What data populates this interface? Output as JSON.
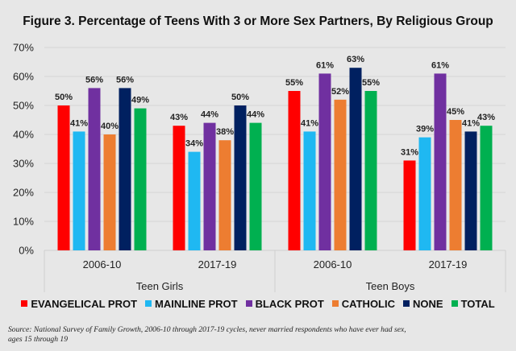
{
  "chart_data": {
    "type": "bar",
    "title": "Figure 3. Percentage of Teens With 3 or More Sex Partners, By Religious Group",
    "xlabel": "",
    "ylabel": "",
    "ylim": [
      0,
      70
    ],
    "y_ticks": [
      "0%",
      "10%",
      "20%",
      "30%",
      "40%",
      "50%",
      "60%",
      "70%"
    ],
    "y_tick_values": [
      0,
      10,
      20,
      30,
      40,
      50,
      60,
      70
    ],
    "grid": true,
    "legend_position": "bottom",
    "groups": [
      {
        "label": "Teen Girls",
        "categories": [
          "2006-10",
          "2017-19"
        ]
      },
      {
        "label": "Teen Boys",
        "categories": [
          "2006-10",
          "2017-19"
        ]
      }
    ],
    "categories": [
      "Teen Girls 2006-10",
      "Teen Girls 2017-19",
      "Teen Boys 2006-10",
      "Teen Boys 2017-19"
    ],
    "series": [
      {
        "name": "EVANGELICAL PROT",
        "color": "#ff0000",
        "values": [
          50,
          43,
          55,
          31
        ],
        "labels": [
          "50%",
          "43%",
          "55%",
          "31%"
        ]
      },
      {
        "name": "MAINLINE PROT",
        "color": "#1fb8f2",
        "values": [
          41,
          34,
          41,
          39
        ],
        "labels": [
          "41%",
          "34%",
          "41%",
          "39%"
        ]
      },
      {
        "name": "BLACK PROT",
        "color": "#7030a0",
        "values": [
          56,
          44,
          61,
          61
        ],
        "labels": [
          "56%",
          "44%",
          "61%",
          "61%"
        ]
      },
      {
        "name": "CATHOLIC",
        "color": "#ed7d31",
        "values": [
          40,
          38,
          52,
          45
        ],
        "labels": [
          "40%",
          "38%",
          "52%",
          "45%"
        ]
      },
      {
        "name": "NONE",
        "color": "#002060",
        "values": [
          56,
          50,
          63,
          41
        ],
        "labels": [
          "56%",
          "50%",
          "63%",
          "41%"
        ]
      },
      {
        "name": "TOTAL",
        "color": "#00b050",
        "values": [
          49,
          44,
          55,
          43
        ],
        "labels": [
          "49%",
          "44%",
          "55%",
          "43%"
        ]
      }
    ]
  },
  "source": "Source: National Survey of Family Growth, 2006-10 through 2017-19 cycles, never married respondents who have ever had sex, ages 15 through 19"
}
